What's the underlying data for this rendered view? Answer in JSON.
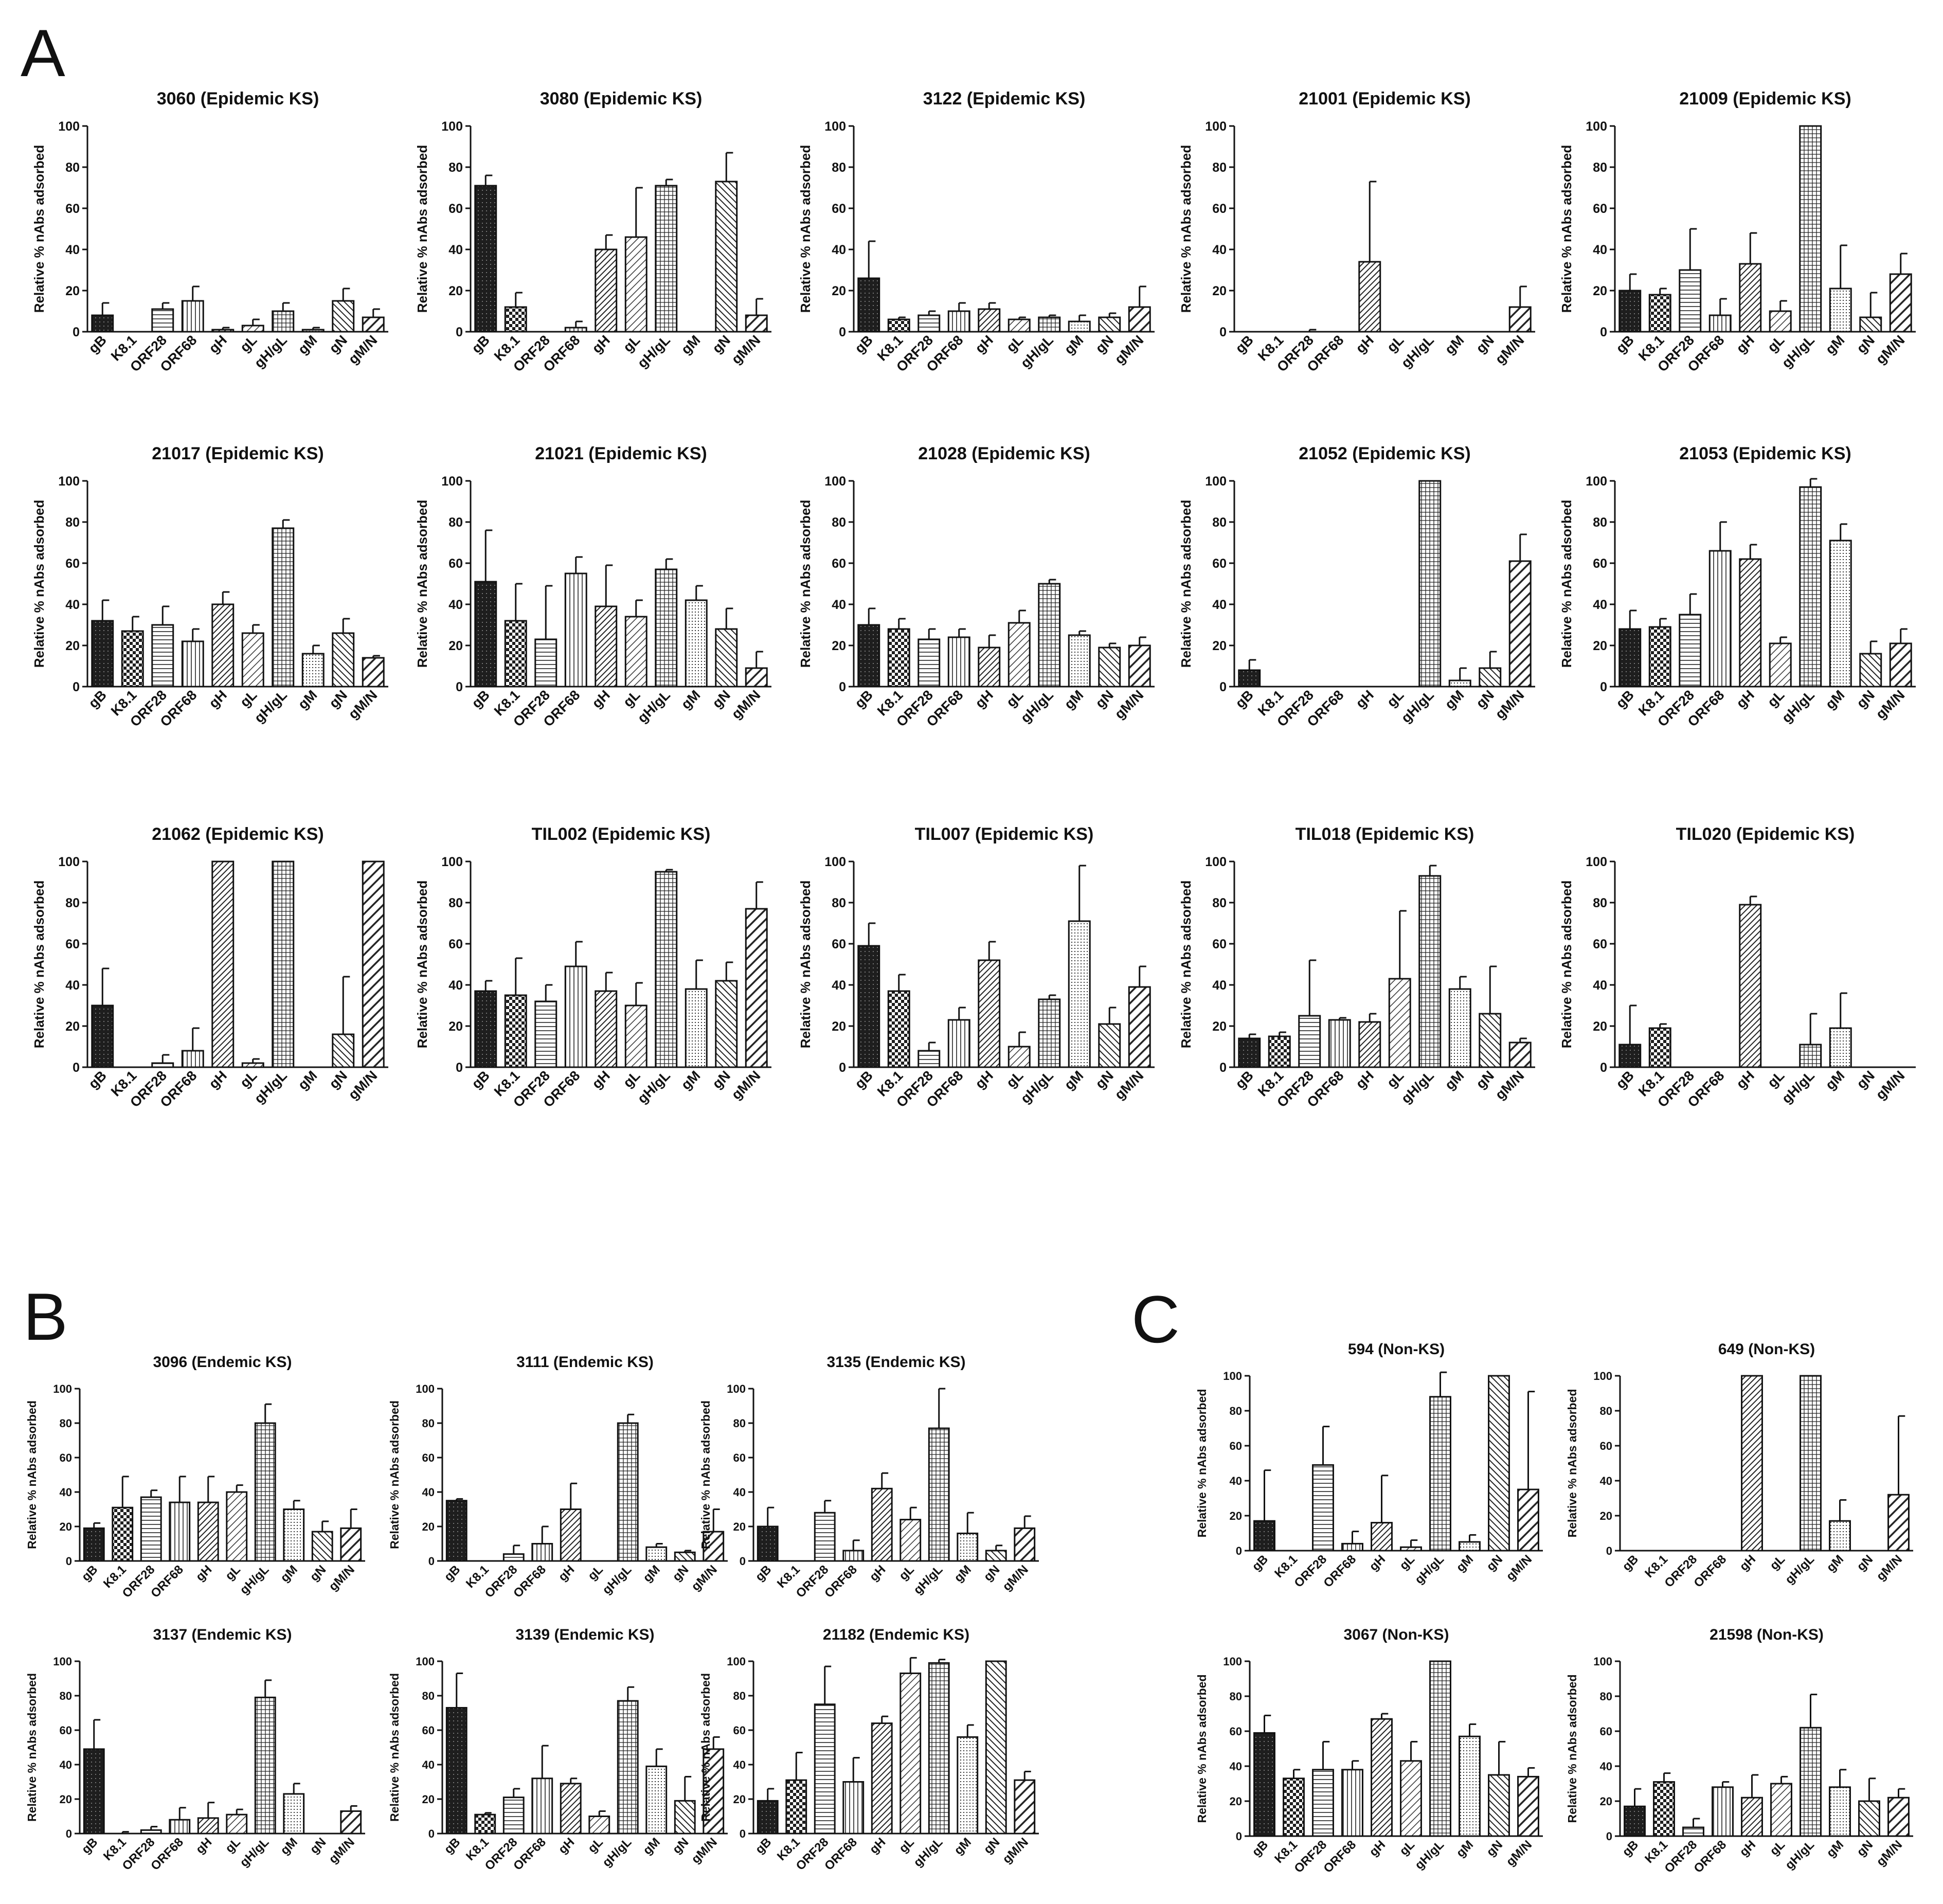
{
  "panels": [
    {
      "letter": "A"
    },
    {
      "letter": "B"
    },
    {
      "letter": "C"
    }
  ],
  "categories": [
    "gB",
    "K8.1",
    "ORF28",
    "ORF68",
    "gH",
    "gL",
    "gH/gL",
    "gM",
    "gN",
    "gM/N"
  ],
  "ylabel": "Relative % nAbs adsorbed",
  "yticks": [
    "0",
    "20",
    "40",
    "60",
    "80",
    "100"
  ],
  "chart_data": [
    {
      "type": "bar",
      "panel": "A",
      "title": "3060 (Epidemic KS)",
      "ylabel": "Relative % nAbs adsorbed",
      "ylim": [
        0,
        100
      ],
      "categories": [
        "gB",
        "K8.1",
        "ORF28",
        "ORF68",
        "gH",
        "gL",
        "gH/gL",
        "gM",
        "gN",
        "gM/N"
      ],
      "values": [
        8,
        0,
        11,
        15,
        1,
        3,
        10,
        1,
        15,
        7
      ],
      "errors": [
        6,
        0,
        3,
        7,
        1,
        3,
        4,
        1,
        6,
        4
      ]
    },
    {
      "type": "bar",
      "panel": "A",
      "title": "3080 (Epidemic KS)",
      "ylabel": "Relative % nAbs adsorbed",
      "ylim": [
        0,
        100
      ],
      "categories": [
        "gB",
        "K8.1",
        "ORF28",
        "ORF68",
        "gH",
        "gL",
        "gH/gL",
        "gM",
        "gN",
        "gM/N"
      ],
      "values": [
        71,
        12,
        0,
        2,
        40,
        46,
        71,
        0,
        73,
        8
      ],
      "errors": [
        5,
        7,
        0,
        3,
        7,
        24,
        3,
        0,
        14,
        8
      ]
    },
    {
      "type": "bar",
      "panel": "A",
      "title": "3122 (Epidemic KS)",
      "ylabel": "Relative % nAbs adsorbed",
      "ylim": [
        0,
        100
      ],
      "categories": [
        "gB",
        "K8.1",
        "ORF28",
        "ORF68",
        "gH",
        "gL",
        "gH/gL",
        "gM",
        "gN",
        "gM/N"
      ],
      "values": [
        26,
        6,
        8,
        10,
        11,
        6,
        7,
        5,
        7,
        12
      ],
      "errors": [
        18,
        1,
        2,
        4,
        3,
        1,
        1,
        3,
        2,
        10
      ]
    },
    {
      "type": "bar",
      "panel": "A",
      "title": "21001 (Epidemic KS)",
      "ylabel": "Relative % nAbs adsorbed",
      "ylim": [
        0,
        100
      ],
      "categories": [
        "gB",
        "K8.1",
        "ORF28",
        "ORF68",
        "gH",
        "gL",
        "gH/gL",
        "gM",
        "gN",
        "gM/N"
      ],
      "values": [
        0,
        0,
        0,
        0,
        34,
        0,
        0,
        0,
        0,
        12
      ],
      "errors": [
        0,
        0,
        1,
        0,
        39,
        0,
        0,
        0,
        0,
        10
      ]
    },
    {
      "type": "bar",
      "panel": "A",
      "title": "21009 (Epidemic KS)",
      "ylabel": "Relative % nAbs adsorbed",
      "ylim": [
        0,
        100
      ],
      "categories": [
        "gB",
        "K8.1",
        "ORF28",
        "ORF68",
        "gH",
        "gL",
        "gH/gL",
        "gM",
        "gN",
        "gM/N"
      ],
      "values": [
        20,
        18,
        30,
        8,
        33,
        10,
        100,
        21,
        7,
        28
      ],
      "errors": [
        8,
        3,
        20,
        8,
        15,
        5,
        0,
        21,
        12,
        10
      ]
    },
    {
      "type": "bar",
      "panel": "A",
      "title": "21017 (Epidemic KS)",
      "ylabel": "Relative % nAbs adsorbed",
      "ylim": [
        0,
        100
      ],
      "categories": [
        "gB",
        "K8.1",
        "ORF28",
        "ORF68",
        "gH",
        "gL",
        "gH/gL",
        "gM",
        "gN",
        "gM/N"
      ],
      "values": [
        32,
        27,
        30,
        22,
        40,
        26,
        77,
        16,
        26,
        14
      ],
      "errors": [
        10,
        7,
        9,
        6,
        6,
        4,
        4,
        4,
        7,
        1
      ]
    },
    {
      "type": "bar",
      "panel": "A",
      "title": "21021 (Epidemic KS)",
      "ylabel": "Relative % nAbs adsorbed",
      "ylim": [
        0,
        100
      ],
      "categories": [
        "gB",
        "K8.1",
        "ORF28",
        "ORF68",
        "gH",
        "gL",
        "gH/gL",
        "gM",
        "gN",
        "gM/N"
      ],
      "values": [
        51,
        32,
        23,
        55,
        39,
        34,
        57,
        42,
        28,
        9
      ],
      "errors": [
        25,
        18,
        26,
        8,
        20,
        8,
        5,
        7,
        10,
        8
      ]
    },
    {
      "type": "bar",
      "panel": "A",
      "title": "21028 (Epidemic KS)",
      "ylabel": "Relative % nAbs adsorbed",
      "ylim": [
        0,
        100
      ],
      "categories": [
        "gB",
        "K8.1",
        "ORF28",
        "ORF68",
        "gH",
        "gL",
        "gH/gL",
        "gM",
        "gN",
        "gM/N"
      ],
      "values": [
        30,
        28,
        23,
        24,
        19,
        31,
        50,
        25,
        19,
        20
      ],
      "errors": [
        8,
        5,
        5,
        4,
        6,
        6,
        2,
        2,
        2,
        4
      ]
    },
    {
      "type": "bar",
      "panel": "A",
      "title": "21052 (Epidemic KS)",
      "ylabel": "Relative % nAbs adsorbed",
      "ylim": [
        0,
        100
      ],
      "categories": [
        "gB",
        "K8.1",
        "ORF28",
        "ORF68",
        "gH",
        "gL",
        "gH/gL",
        "gM",
        "gN",
        "gM/N"
      ],
      "values": [
        8,
        0,
        0,
        0,
        0,
        0,
        100,
        3,
        9,
        61
      ],
      "errors": [
        5,
        0,
        0,
        0,
        0,
        0,
        0,
        6,
        8,
        13
      ]
    },
    {
      "type": "bar",
      "panel": "A",
      "title": "21053 (Epidemic KS)",
      "ylabel": "Relative % nAbs adsorbed",
      "ylim": [
        0,
        100
      ],
      "categories": [
        "gB",
        "K8.1",
        "ORF28",
        "ORF68",
        "gH",
        "gL",
        "gH/gL",
        "gM",
        "gN",
        "gM/N"
      ],
      "values": [
        28,
        29,
        35,
        66,
        62,
        21,
        97,
        71,
        16,
        21
      ],
      "errors": [
        9,
        4,
        10,
        14,
        7,
        3,
        4,
        8,
        6,
        7
      ]
    },
    {
      "type": "bar",
      "panel": "A",
      "title": "21062 (Epidemic KS)",
      "ylabel": "Relative % nAbs adsorbed",
      "ylim": [
        0,
        100
      ],
      "categories": [
        "gB",
        "K8.1",
        "ORF28",
        "ORF68",
        "gH",
        "gL",
        "gH/gL",
        "gM",
        "gN",
        "gM/N"
      ],
      "values": [
        30,
        0,
        2,
        8,
        100,
        2,
        100,
        0,
        16,
        100
      ],
      "errors": [
        18,
        0,
        4,
        11,
        0,
        2,
        0,
        0,
        28,
        0
      ]
    },
    {
      "type": "bar",
      "panel": "A",
      "title": "TIL002 (Epidemic KS)",
      "ylabel": "Relative % nAbs adsorbed",
      "ylim": [
        0,
        100
      ],
      "categories": [
        "gB",
        "K8.1",
        "ORF28",
        "ORF68",
        "gH",
        "gL",
        "gH/gL",
        "gM",
        "gN",
        "gM/N"
      ],
      "values": [
        37,
        35,
        32,
        49,
        37,
        30,
        95,
        38,
        42,
        77
      ],
      "errors": [
        5,
        18,
        8,
        12,
        9,
        11,
        1,
        14,
        9,
        13
      ]
    },
    {
      "type": "bar",
      "panel": "A",
      "title": "TIL007 (Epidemic KS)",
      "ylabel": "Relative % nAbs adsorbed",
      "ylim": [
        0,
        100
      ],
      "categories": [
        "gB",
        "K8.1",
        "ORF28",
        "ORF68",
        "gH",
        "gL",
        "gH/gL",
        "gM",
        "gN",
        "gM/N"
      ],
      "values": [
        59,
        37,
        8,
        23,
        52,
        10,
        33,
        71,
        21,
        39
      ],
      "errors": [
        11,
        8,
        4,
        6,
        9,
        7,
        2,
        27,
        8,
        10
      ]
    },
    {
      "type": "bar",
      "panel": "A",
      "title": "TIL018 (Epidemic KS)",
      "ylabel": "Relative % nAbs adsorbed",
      "ylim": [
        0,
        100
      ],
      "categories": [
        "gB",
        "K8.1",
        "ORF28",
        "ORF68",
        "gH",
        "gL",
        "gH/gL",
        "gM",
        "gN",
        "gM/N"
      ],
      "values": [
        14,
        15,
        25,
        23,
        22,
        43,
        93,
        38,
        26,
        12
      ],
      "errors": [
        2,
        2,
        27,
        1,
        4,
        33,
        5,
        6,
        23,
        2
      ]
    },
    {
      "type": "bar",
      "panel": "A",
      "title": "TIL020 (Epidemic KS)",
      "ylabel": "Relative % nAbs adsorbed",
      "ylim": [
        0,
        100
      ],
      "categories": [
        "gB",
        "K8.1",
        "ORF28",
        "ORF68",
        "gH",
        "gL",
        "gH/gL",
        "gM",
        "gN",
        "gM/N"
      ],
      "values": [
        11,
        19,
        0,
        0,
        79,
        0,
        11,
        19,
        0,
        0
      ],
      "errors": [
        19,
        2,
        0,
        0,
        4,
        0,
        15,
        17,
        0,
        0
      ]
    },
    {
      "type": "bar",
      "panel": "B",
      "title": "3096 (Endemic KS)",
      "ylabel": "Relative % nAbs adsorbed",
      "ylim": [
        0,
        100
      ],
      "categories": [
        "gB",
        "K8.1",
        "ORF28",
        "ORF68",
        "gH",
        "gL",
        "gH/gL",
        "gM",
        "gN",
        "gM/N"
      ],
      "values": [
        19,
        31,
        37,
        34,
        34,
        40,
        80,
        30,
        17,
        19
      ],
      "errors": [
        3,
        18,
        4,
        15,
        15,
        4,
        11,
        5,
        6,
        11
      ]
    },
    {
      "type": "bar",
      "panel": "B",
      "title": "3111 (Endemic KS)",
      "ylabel": "Relative % nAbs adsorbed",
      "ylim": [
        0,
        100
      ],
      "categories": [
        "gB",
        "K8.1",
        "ORF28",
        "ORF68",
        "gH",
        "gL",
        "gH/gL",
        "gM",
        "gN",
        "gM/N"
      ],
      "values": [
        35,
        0,
        4,
        10,
        30,
        0,
        80,
        8,
        5,
        17
      ],
      "errors": [
        1,
        0,
        5,
        10,
        15,
        0,
        5,
        2,
        1,
        13
      ]
    },
    {
      "type": "bar",
      "panel": "B",
      "title": "3135 (Endemic KS)",
      "ylabel": "Relative % nAbs adsorbed",
      "ylim": [
        0,
        100
      ],
      "categories": [
        "gB",
        "K8.1",
        "ORF28",
        "ORF68",
        "gH",
        "gL",
        "gH/gL",
        "gM",
        "gN",
        "gM/N"
      ],
      "values": [
        20,
        0,
        28,
        6,
        42,
        24,
        77,
        16,
        6,
        19
      ],
      "errors": [
        11,
        0,
        7,
        6,
        9,
        7,
        23,
        12,
        3,
        7
      ]
    },
    {
      "type": "bar",
      "panel": "B",
      "title": "3137 (Endemic KS)",
      "ylabel": "Relative % nAbs adsorbed",
      "ylim": [
        0,
        100
      ],
      "categories": [
        "gB",
        "K8.1",
        "ORF28",
        "ORF68",
        "gH",
        "gL",
        "gH/gL",
        "gM",
        "gN",
        "gM/N"
      ],
      "values": [
        49,
        0,
        2,
        8,
        9,
        11,
        79,
        23,
        0,
        13
      ],
      "errors": [
        17,
        1,
        2,
        7,
        9,
        3,
        10,
        6,
        0,
        3
      ]
    },
    {
      "type": "bar",
      "panel": "B",
      "title": "3139 (Endemic KS)",
      "ylabel": "Relative % nAbs adsorbed",
      "ylim": [
        0,
        100
      ],
      "categories": [
        "gB",
        "K8.1",
        "ORF28",
        "ORF68",
        "gH",
        "gL",
        "gH/gL",
        "gM",
        "gN",
        "gM/N"
      ],
      "values": [
        73,
        11,
        21,
        32,
        29,
        10,
        77,
        39,
        19,
        49
      ],
      "errors": [
        20,
        1,
        5,
        19,
        3,
        3,
        8,
        10,
        14,
        7
      ]
    },
    {
      "type": "bar",
      "panel": "B",
      "title": "21182 (Endemic KS)",
      "ylabel": "Relative % nAbs adsorbed",
      "ylim": [
        0,
        100
      ],
      "categories": [
        "gB",
        "K8.1",
        "ORF28",
        "ORF68",
        "gH",
        "gL",
        "gH/gL",
        "gM",
        "gN",
        "gM/N"
      ],
      "values": [
        19,
        31,
        75,
        30,
        64,
        93,
        99,
        56,
        100,
        31
      ],
      "errors": [
        7,
        16,
        22,
        14,
        4,
        10,
        2,
        7,
        0,
        5
      ]
    },
    {
      "type": "bar",
      "panel": "C",
      "title": "594 (Non-KS)",
      "ylabel": "Relative % nAbs adsorbed",
      "ylim": [
        0,
        100
      ],
      "categories": [
        "gB",
        "K8.1",
        "ORF28",
        "ORF68",
        "gH",
        "gL",
        "gH/gL",
        "gM",
        "gN",
        "gM/N"
      ],
      "values": [
        17,
        0,
        49,
        4,
        16,
        2,
        88,
        5,
        100,
        35
      ],
      "errors": [
        29,
        0,
        22,
        7,
        27,
        4,
        14,
        4,
        0,
        56
      ]
    },
    {
      "type": "bar",
      "panel": "C",
      "title": "649 (Non-KS)",
      "ylabel": "Relative % nAbs adsorbed",
      "ylim": [
        0,
        100
      ],
      "categories": [
        "gB",
        "K8.1",
        "ORF28",
        "ORF68",
        "gH",
        "gL",
        "gH/gL",
        "gM",
        "gN",
        "gM/N"
      ],
      "values": [
        0,
        0,
        0,
        0,
        100,
        0,
        100,
        17,
        0,
        32
      ],
      "errors": [
        0,
        0,
        0,
        0,
        0,
        0,
        0,
        12,
        0,
        45
      ]
    },
    {
      "type": "bar",
      "panel": "C",
      "title": "3067 (Non-KS)",
      "ylabel": "Relative % nAbs adsorbed",
      "ylim": [
        0,
        100
      ],
      "categories": [
        "gB",
        "K8.1",
        "ORF28",
        "ORF68",
        "gH",
        "gL",
        "gH/gL",
        "gM",
        "gN",
        "gM/N"
      ],
      "values": [
        59,
        33,
        38,
        38,
        67,
        43,
        100,
        57,
        35,
        34
      ],
      "errors": [
        10,
        5,
        16,
        5,
        3,
        11,
        0,
        7,
        19,
        5
      ]
    },
    {
      "type": "bar",
      "panel": "C",
      "title": "21598 (Non-KS)",
      "ylabel": "Relative % nAbs adsorbed",
      "ylim": [
        0,
        100
      ],
      "categories": [
        "gB",
        "K8.1",
        "ORF28",
        "ORF68",
        "gH",
        "gL",
        "gH/gL",
        "gM",
        "gN",
        "gM/N"
      ],
      "values": [
        17,
        31,
        5,
        28,
        22,
        30,
        62,
        28,
        20,
        22
      ],
      "errors": [
        10,
        5,
        5,
        3,
        13,
        4,
        19,
        10,
        13,
        5
      ]
    }
  ]
}
